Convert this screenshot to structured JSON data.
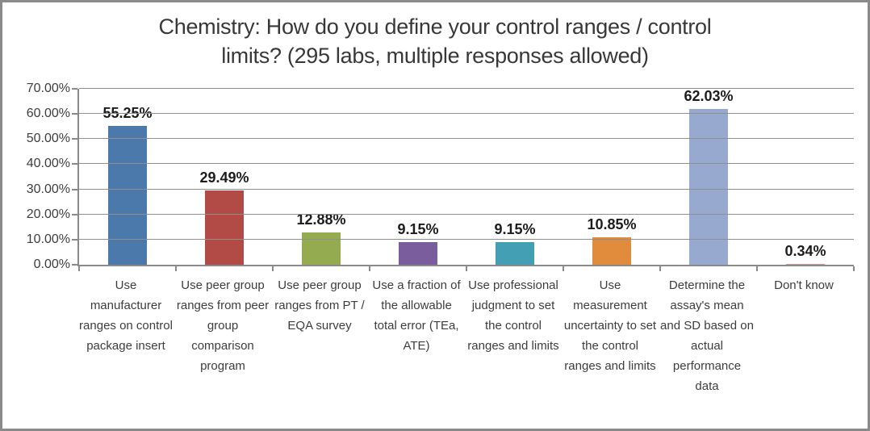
{
  "window": {
    "background": "#ffffff",
    "frame_border": "#8a8a8a"
  },
  "title": {
    "line1": "Chemistry: How do you define your control ranges / control",
    "line2": "limits? (295 labs, multiple responses allowed)"
  },
  "chart_data": {
    "type": "bar",
    "title": "Chemistry: How do you define your control ranges / control limits? (295 labs, multiple responses allowed)",
    "categories": [
      "Use manufacturer ranges on control package insert",
      "Use peer group ranges from peer group comparison program",
      "Use peer group ranges from PT / EQA survey",
      "Use a fraction of the allowable total error (TEa, ATE)",
      "Use professional judgment to set the control ranges and limits",
      "Use measurement uncertainty to set the control ranges and limits",
      "Determine the assay's mean and SD based on actual performance data",
      "Don't know"
    ],
    "values": [
      55.25,
      29.49,
      12.88,
      9.15,
      9.15,
      10.85,
      62.03,
      0.34
    ],
    "value_labels": [
      "55.25%",
      "29.49%",
      "12.88%",
      "9.15%",
      "9.15%",
      "10.85%",
      "62.03%",
      "0.34%"
    ],
    "bar_colors": [
      "#4b79ac",
      "#b24a45",
      "#94ab50",
      "#7a5d9c",
      "#43a0b4",
      "#e18c3d",
      "#97a9cf",
      "#d99694"
    ],
    "xlabel": "",
    "ylabel": "",
    "ylim": [
      0,
      70
    ],
    "ytick_step": 10,
    "ytick_labels": [
      "70.00%",
      "60.00%",
      "50.00%",
      "40.00%",
      "30.00%",
      "20.00%",
      "10.00%",
      "0.00%"
    ],
    "grid": true,
    "legend": false
  },
  "colors": {
    "gridline": "#8f8f8f",
    "axis": "#8a8a8a",
    "bar_label_text": "#1c1c1c",
    "axis_text": "#3d3d3d",
    "title_text": "#383838"
  }
}
